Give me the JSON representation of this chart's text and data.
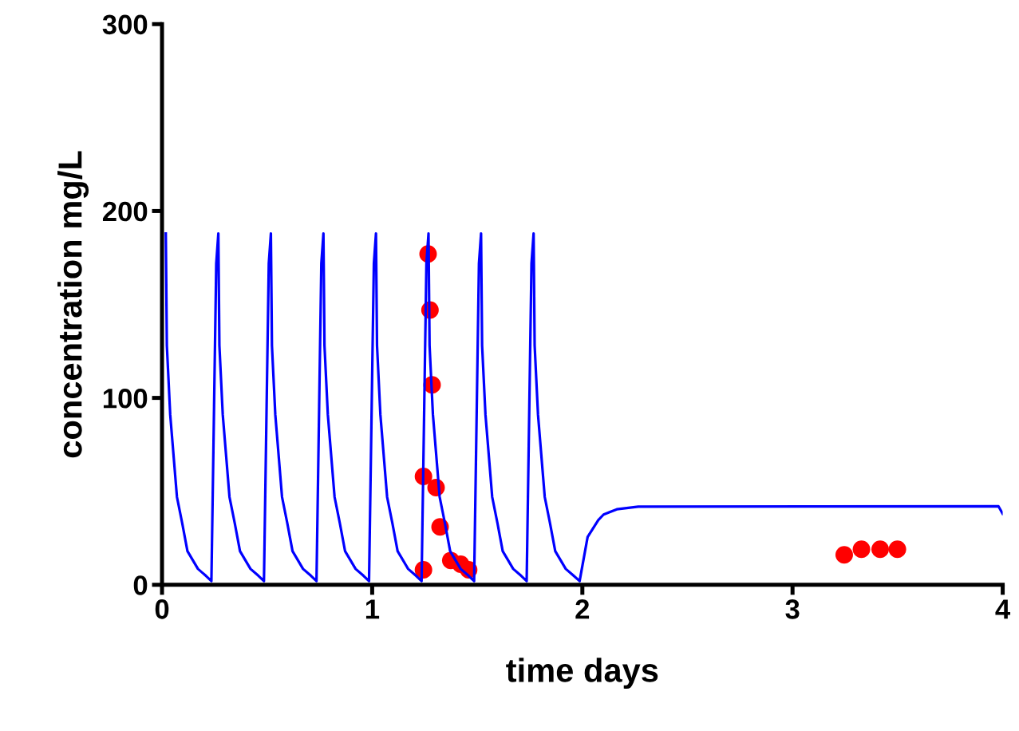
{
  "chart_data": {
    "type": "line",
    "xlabel": "time days",
    "ylabel": "concentration mg/L",
    "xlim": [
      0,
      4
    ],
    "xticks": [
      0,
      1,
      2,
      3,
      4
    ],
    "ylim": [
      0,
      300
    ],
    "yticks": [
      0,
      100,
      200,
      300
    ],
    "grid": false,
    "series": [
      {
        "color": "#0000ff",
        "marker": "none",
        "line_style": "solid",
        "x": [
          0.018,
          0.023,
          0.039,
          0.071,
          0.096,
          0.121,
          0.171,
          0.209,
          0.235,
          0.258,
          0.268,
          0.273,
          0.289,
          0.321,
          0.346,
          0.371,
          0.421,
          0.459,
          0.485,
          0.508,
          0.518,
          0.523,
          0.539,
          0.571,
          0.596,
          0.621,
          0.671,
          0.709,
          0.735,
          0.758,
          0.768,
          0.773,
          0.789,
          0.821,
          0.846,
          0.871,
          0.921,
          0.959,
          0.985,
          1.008,
          1.018,
          1.023,
          1.039,
          1.071,
          1.096,
          1.121,
          1.171,
          1.209,
          1.235,
          1.258,
          1.268,
          1.273,
          1.289,
          1.321,
          1.346,
          1.371,
          1.421,
          1.459,
          1.485,
          1.508,
          1.518,
          1.523,
          1.539,
          1.571,
          1.596,
          1.621,
          1.671,
          1.709,
          1.735,
          1.758,
          1.768,
          1.773,
          1.789,
          1.821,
          1.846,
          1.871,
          1.921,
          1.959,
          1.987,
          2.025,
          2.076,
          2.101,
          2.164,
          2.266,
          3.98,
          4.0
        ],
        "values": [
          188,
          128,
          91,
          47,
          33,
          18,
          8.5,
          4.8,
          2,
          172,
          188,
          128,
          91,
          47,
          33,
          18,
          8.5,
          4.8,
          2,
          172,
          188,
          128,
          91,
          47,
          33,
          18,
          8.5,
          4.8,
          2,
          172,
          188,
          128,
          91,
          47,
          33,
          18,
          8.5,
          4.8,
          2,
          172,
          188,
          128,
          91,
          47,
          33,
          18,
          8.5,
          4.8,
          2,
          172,
          188,
          128,
          91,
          47,
          33,
          18,
          8.5,
          4.8,
          2,
          172,
          188,
          128,
          91,
          47,
          33,
          18,
          8.5,
          4.8,
          2,
          172,
          188,
          128,
          91,
          47,
          33,
          18,
          8.5,
          4.8,
          2,
          25.6,
          34.7,
          37.6,
          40.4,
          41.8,
          42,
          38
        ]
      },
      {
        "type": "scatter",
        "color": "#ff0000",
        "marker": "circle",
        "x": [
          1.266,
          1.275,
          1.285,
          1.244,
          1.304,
          1.323,
          1.374,
          1.421,
          1.459,
          1.244,
          3.246,
          3.328,
          3.417,
          3.499
        ],
        "values": [
          177,
          147,
          107,
          58,
          52,
          31,
          13,
          11,
          8,
          8,
          16,
          19,
          19,
          19
        ]
      }
    ]
  }
}
